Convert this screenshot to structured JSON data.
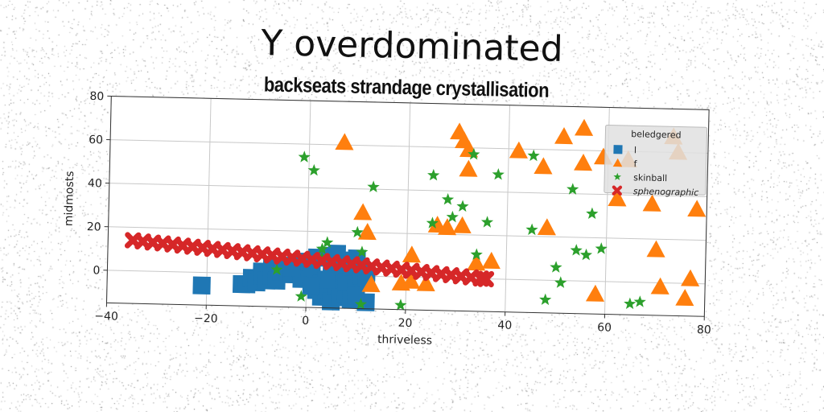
{
  "title": "Y overdominated",
  "subtitle": "backseats strandage crystallisation",
  "chart_data": {
    "type": "scatter",
    "xlabel": "thriveless",
    "ylabel": "midmosts",
    "xlim": [
      -40,
      80
    ],
    "ylim": [
      -15,
      80
    ],
    "xticks": [
      -40,
      -20,
      0,
      20,
      40,
      60,
      80
    ],
    "yticks": [
      0,
      20,
      40,
      60,
      80
    ],
    "grid": true,
    "legend": {
      "title": "beledgered",
      "placement": "top-right"
    },
    "series": [
      {
        "name": "l",
        "marker": "square",
        "color": "#1f77b4",
        "points": [
          [
            -21,
            -6
          ],
          [
            -13,
            -5
          ],
          [
            -12,
            -5
          ],
          [
            -11,
            -2
          ],
          [
            -10,
            -4
          ],
          [
            -9,
            -1
          ],
          [
            -9,
            1
          ],
          [
            -8,
            -3
          ],
          [
            -7,
            3
          ],
          [
            -7,
            -1
          ],
          [
            -6,
            -3
          ],
          [
            -5,
            1
          ],
          [
            -4,
            4
          ],
          [
            -3,
            0
          ],
          [
            -2,
            5
          ],
          [
            -1,
            -2
          ],
          [
            0,
            6
          ],
          [
            1,
            3
          ],
          [
            1,
            -1
          ],
          [
            2,
            -7
          ],
          [
            2,
            8
          ],
          [
            3,
            -4
          ],
          [
            3,
            -10
          ],
          [
            4,
            -7
          ],
          [
            4,
            9
          ],
          [
            5,
            5
          ],
          [
            5,
            -1
          ],
          [
            5,
            -12
          ],
          [
            6,
            -5
          ],
          [
            6,
            2
          ],
          [
            7,
            -10
          ],
          [
            7,
            7
          ],
          [
            8,
            -8
          ],
          [
            8,
            -3
          ],
          [
            9,
            4
          ],
          [
            9,
            -11
          ],
          [
            10,
            -6
          ],
          [
            10,
            8
          ],
          [
            11,
            0
          ],
          [
            12,
            -12
          ],
          [
            12,
            2
          ],
          [
            12,
            -3
          ],
          [
            4,
            -2
          ],
          [
            1,
            -5
          ],
          [
            -3,
            3
          ],
          [
            6,
            10
          ],
          [
            10,
            -9
          ]
        ]
      },
      {
        "name": "f",
        "marker": "triangle",
        "color": "#ff7f0e",
        "points": [
          [
            7,
            61
          ],
          [
            11,
            29
          ],
          [
            12,
            20
          ],
          [
            13,
            -4
          ],
          [
            19,
            -3
          ],
          [
            21,
            -2
          ],
          [
            21,
            10
          ],
          [
            24,
            -3
          ],
          [
            26,
            24
          ],
          [
            28,
            23
          ],
          [
            30,
            67
          ],
          [
            31,
            24
          ],
          [
            31,
            63
          ],
          [
            32,
            50
          ],
          [
            32,
            59
          ],
          [
            34,
            7
          ],
          [
            37,
            8
          ],
          [
            42,
            59
          ],
          [
            47,
            52
          ],
          [
            48,
            24
          ],
          [
            51,
            66
          ],
          [
            55,
            70
          ],
          [
            55,
            54
          ],
          [
            58,
            -6
          ],
          [
            59,
            57
          ],
          [
            62,
            38
          ],
          [
            64,
            56
          ],
          [
            69,
            36
          ],
          [
            70,
            15
          ],
          [
            71,
            -2
          ],
          [
            74,
            60
          ],
          [
            76,
            -7
          ],
          [
            77,
            2
          ],
          [
            78,
            34
          ],
          [
            73,
            67
          ]
        ]
      },
      {
        "name": "skinball",
        "marker": "star",
        "color": "#2ca02c",
        "points": [
          [
            -1,
            54
          ],
          [
            1,
            48
          ],
          [
            -6,
            2
          ],
          [
            -1,
            -10
          ],
          [
            3,
            12
          ],
          [
            3,
            8
          ],
          [
            4,
            15
          ],
          [
            10,
            20
          ],
          [
            11,
            -13
          ],
          [
            11,
            11
          ],
          [
            13,
            41
          ],
          [
            19,
            -13
          ],
          [
            25,
            47
          ],
          [
            25,
            25
          ],
          [
            28,
            36
          ],
          [
            29,
            28
          ],
          [
            31,
            33
          ],
          [
            33,
            57
          ],
          [
            34,
            11
          ],
          [
            36,
            26
          ],
          [
            38,
            48
          ],
          [
            45,
            57
          ],
          [
            45,
            23
          ],
          [
            48,
            -9
          ],
          [
            50,
            6
          ],
          [
            51,
            -1
          ],
          [
            53,
            42
          ],
          [
            54,
            14
          ],
          [
            56,
            12
          ],
          [
            57,
            31
          ],
          [
            59,
            15
          ],
          [
            65,
            -10
          ],
          [
            67,
            -9
          ]
        ]
      },
      {
        "name": "sphenographic",
        "marker": "x",
        "color": "#d62728",
        "points": [
          [
            -35,
            14
          ],
          [
            -33,
            13.6
          ],
          [
            -31,
            13.2
          ],
          [
            -29,
            12.9
          ],
          [
            -27,
            12.5
          ],
          [
            -25,
            12.1
          ],
          [
            -23,
            11.7
          ],
          [
            -21,
            11.3
          ],
          [
            -19,
            10.9
          ],
          [
            -17,
            10.5
          ],
          [
            -15,
            10.1
          ],
          [
            -13,
            9.7
          ],
          [
            -11,
            9.3
          ],
          [
            -9,
            8.9
          ],
          [
            -7,
            8.5
          ],
          [
            -5,
            8.1
          ],
          [
            -3,
            7.7
          ],
          [
            -1,
            7.3
          ],
          [
            1,
            6.9
          ],
          [
            3,
            6.5
          ],
          [
            5,
            6.1
          ],
          [
            7,
            5.7
          ],
          [
            9,
            5.3
          ],
          [
            11,
            4.9
          ],
          [
            13,
            4.5
          ],
          [
            15,
            4.1
          ],
          [
            17,
            3.7
          ],
          [
            19,
            3.3
          ],
          [
            21,
            2.9
          ],
          [
            23,
            2.5
          ],
          [
            25,
            2.1
          ],
          [
            27,
            1.7
          ],
          [
            29,
            1.3
          ],
          [
            31,
            0.9
          ],
          [
            33,
            0.5
          ],
          [
            35,
            0.1
          ],
          [
            36,
            -0.1
          ]
        ]
      }
    ]
  }
}
